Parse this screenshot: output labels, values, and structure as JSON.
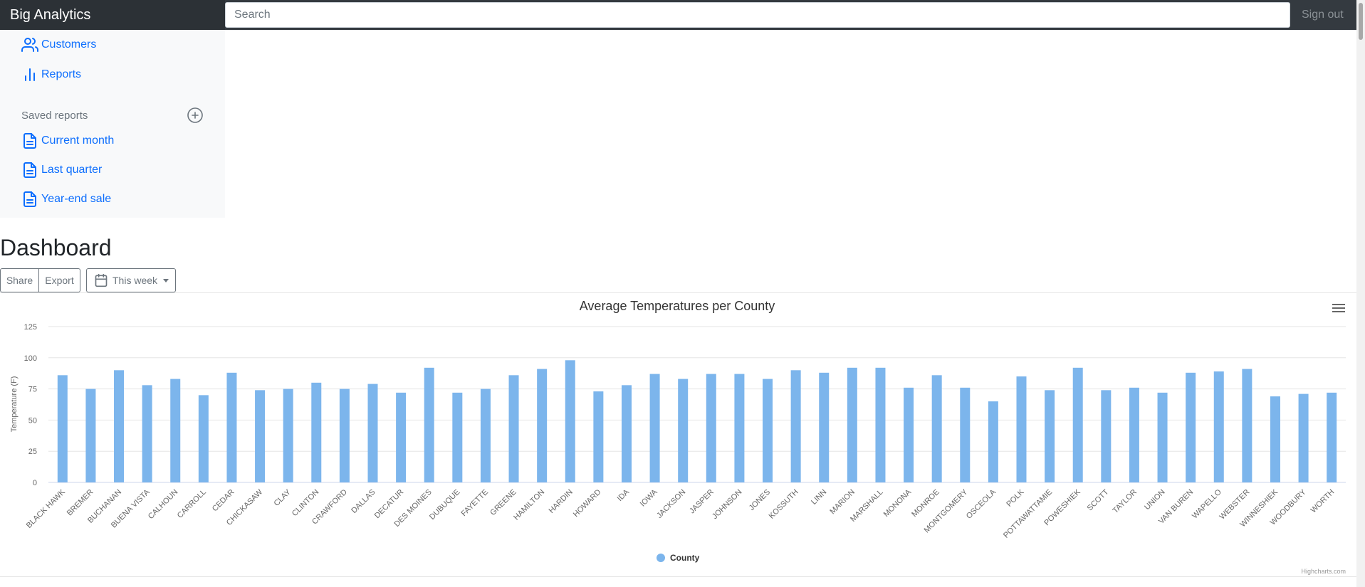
{
  "app": {
    "brand": "Big Analytics",
    "search_placeholder": "Search",
    "signout_label": "Sign out"
  },
  "sidebar": {
    "items": [
      {
        "label": "Customers",
        "icon": "users-icon"
      },
      {
        "label": "Reports",
        "icon": "bar-chart-icon"
      }
    ],
    "saved_header": "Saved reports",
    "saved": [
      {
        "label": "Current month",
        "icon": "file-text-icon"
      },
      {
        "label": "Last quarter",
        "icon": "file-text-icon"
      },
      {
        "label": "Year-end sale",
        "icon": "file-text-icon"
      }
    ]
  },
  "main": {
    "title": "Dashboard",
    "share_label": "Share",
    "export_label": "Export",
    "period_label": "This week"
  },
  "colors": {
    "topbar": "#343a40",
    "link": "#0d6efd",
    "bar": "#7cb5ec"
  },
  "chart_data": {
    "type": "bar",
    "title": "Average Temperatures per County",
    "ylabel": "Temperature (F)",
    "xlabel": "",
    "ylim": [
      0,
      125
    ],
    "yticks": [
      0,
      25,
      50,
      75,
      100,
      125
    ],
    "grid": true,
    "legend": "bottom-center",
    "credits": "Highcharts.com",
    "categories": [
      "BLACK HAWK",
      "BREMER",
      "BUCHANAN",
      "BUENA VISTA",
      "CALHOUN",
      "CARROLL",
      "CEDAR",
      "CHICKASAW",
      "CLAY",
      "CLINTON",
      "CRAWFORD",
      "DALLAS",
      "DECATUR",
      "DES MOINES",
      "DUBUQUE",
      "FAYETTE",
      "GREENE",
      "HAMILTON",
      "HARDIN",
      "HOWARD",
      "IDA",
      "IOWA",
      "JACKSON",
      "JASPER",
      "JOHNSON",
      "JONES",
      "KOSSUTH",
      "LINN",
      "MARION",
      "MARSHALL",
      "MONONA",
      "MONROE",
      "MONTGOMERY",
      "OSCEOLA",
      "POLK",
      "POTTAWATTAMIE",
      "POWESHIEK",
      "SCOTT",
      "TAYLOR",
      "UNION",
      "VAN BUREN",
      "WAPELLO",
      "WEBSTER",
      "WINNESHIEK",
      "WOODBURY",
      "WORTH"
    ],
    "series": [
      {
        "name": "County",
        "values": [
          86,
          75,
          90,
          78,
          83,
          70,
          88,
          74,
          75,
          80,
          75,
          79,
          72,
          92,
          72,
          75,
          86,
          91,
          98,
          73,
          78,
          87,
          83,
          87,
          87,
          83,
          90,
          88,
          92,
          92,
          76,
          86,
          76,
          65,
          85,
          74,
          92,
          74,
          76,
          72,
          88,
          89,
          91,
          69,
          71,
          72
        ]
      }
    ]
  }
}
